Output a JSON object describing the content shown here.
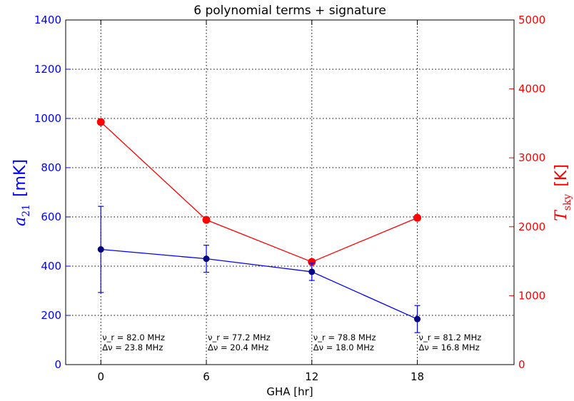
{
  "chart_data": {
    "type": "line",
    "title": "6 polynomial terms + signature",
    "xlabel": "GHA [hr]",
    "ylabel_left": {
      "symbol": "a",
      "subscript": "21",
      "units": "[mK]"
    },
    "ylabel_right": {
      "symbol": "T",
      "subscript": "sky",
      "units": "[K]"
    },
    "xlim": [
      -2.0,
      23.5
    ],
    "ylim_left": [
      0,
      1400
    ],
    "ylim_right": [
      0,
      5000
    ],
    "x_ticks": [
      0,
      6,
      12,
      18
    ],
    "x_tick_labels": [
      "0",
      "6",
      "12",
      "18"
    ],
    "y_ticks_left": [
      0,
      200,
      400,
      600,
      800,
      1000,
      1200,
      1400
    ],
    "y_tick_labels_left": [
      "0",
      "200",
      "400",
      "600",
      "800",
      "1000",
      "1200",
      "1400"
    ],
    "y_ticks_right": [
      0,
      1000,
      2000,
      3000,
      4000,
      5000
    ],
    "y_tick_labels_right": [
      "0",
      "1000",
      "2000",
      "3000",
      "4000",
      "5000"
    ],
    "grid": true,
    "series": [
      {
        "axis": "left",
        "color": "#0000ff",
        "x": [
          0,
          6,
          12,
          18
        ],
        "y": [
          468,
          430,
          377,
          185
        ],
        "yerr": [
          175,
          55,
          35,
          55
        ]
      },
      {
        "axis": "right",
        "color": "#ff0000",
        "x": [
          0,
          6,
          12,
          18
        ],
        "y": [
          3520,
          2100,
          1490,
          2130
        ]
      }
    ],
    "annotations": [
      {
        "x": 0,
        "line1": "ν_r = 82.0 MHz",
        "line2": "Δν = 23.8 MHz"
      },
      {
        "x": 6,
        "line1": "ν_r = 77.2 MHz",
        "line2": "Δν = 20.4 MHz"
      },
      {
        "x": 12,
        "line1": "ν_r = 78.8 MHz",
        "line2": "Δν = 18.0 MHz"
      },
      {
        "x": 18,
        "line1": "ν_r = 81.2 MHz",
        "line2": "Δν = 16.8 MHz"
      }
    ]
  }
}
